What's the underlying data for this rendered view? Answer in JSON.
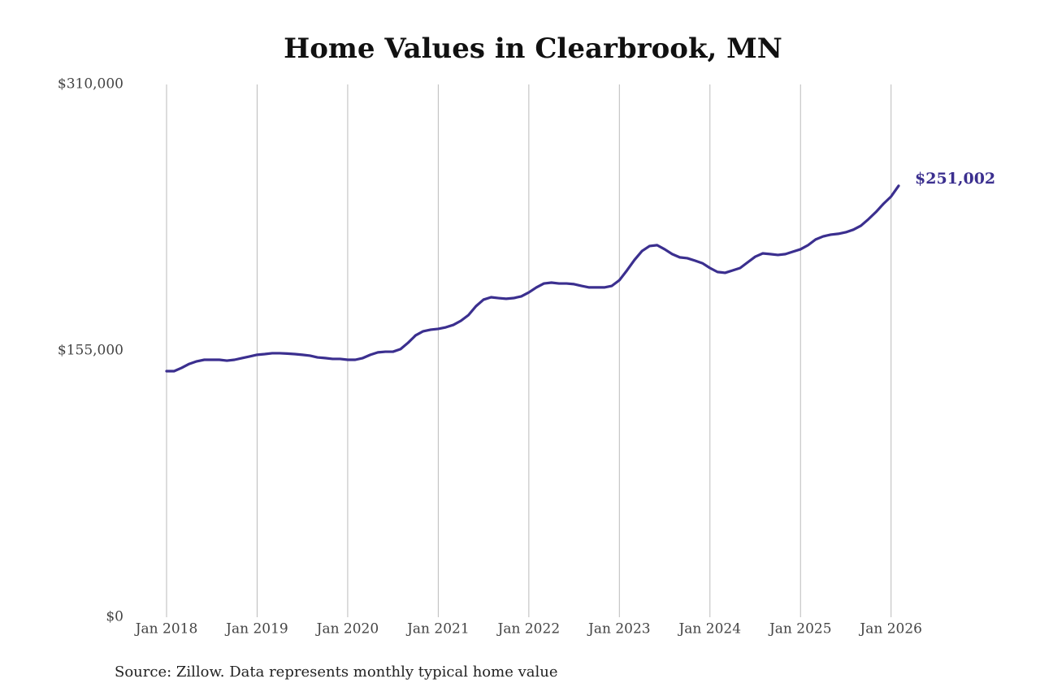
{
  "chart_data": {
    "type": "line",
    "title": "Home Values in Clearbrook, MN",
    "source": "Source: Zillow. Data represents monthly typical home value",
    "x": [
      "2018-01",
      "2018-02",
      "2018-03",
      "2018-04",
      "2018-05",
      "2018-06",
      "2018-07",
      "2018-08",
      "2018-09",
      "2018-10",
      "2018-11",
      "2018-12",
      "2019-01",
      "2019-02",
      "2019-03",
      "2019-04",
      "2019-05",
      "2019-06",
      "2019-07",
      "2019-08",
      "2019-09",
      "2019-10",
      "2019-11",
      "2019-12",
      "2020-01",
      "2020-02",
      "2020-03",
      "2020-04",
      "2020-05",
      "2020-06",
      "2020-07",
      "2020-08",
      "2020-09",
      "2020-10",
      "2020-11",
      "2020-12",
      "2021-01",
      "2021-02",
      "2021-03",
      "2021-04",
      "2021-05",
      "2021-06",
      "2021-07",
      "2021-08",
      "2021-09",
      "2021-10",
      "2021-11",
      "2021-12",
      "2022-01",
      "2022-02",
      "2022-03",
      "2022-04",
      "2022-05",
      "2022-06",
      "2022-07",
      "2022-08",
      "2022-09",
      "2022-10",
      "2022-11",
      "2022-12",
      "2023-01",
      "2023-02",
      "2023-03",
      "2023-04",
      "2023-05",
      "2023-06",
      "2023-07",
      "2023-08",
      "2023-09",
      "2023-10",
      "2023-11",
      "2023-12",
      "2024-01",
      "2024-02",
      "2024-03",
      "2024-04",
      "2024-05",
      "2024-06",
      "2024-07",
      "2024-08",
      "2024-09",
      "2024-10",
      "2024-11",
      "2024-12",
      "2025-01",
      "2025-02",
      "2025-03",
      "2025-04",
      "2025-05",
      "2025-06",
      "2025-07",
      "2025-08",
      "2025-09",
      "2025-10",
      "2025-11",
      "2025-12",
      "2026-01",
      "2026-02"
    ],
    "series": [
      {
        "name": "Typical home value",
        "color": "#3b2f8f",
        "values": [
          143200,
          143200,
          145100,
          147400,
          148900,
          149800,
          149800,
          149800,
          149300,
          149800,
          150800,
          151700,
          152700,
          153100,
          153600,
          153600,
          153400,
          153100,
          152700,
          152200,
          151200,
          150800,
          150300,
          150300,
          149800,
          149800,
          150800,
          152700,
          154100,
          154500,
          154500,
          156000,
          159700,
          164000,
          166400,
          167300,
          167800,
          168700,
          170100,
          172500,
          175800,
          181000,
          184800,
          186200,
          185700,
          185300,
          185700,
          186700,
          189000,
          191900,
          194200,
          194700,
          194200,
          194200,
          193800,
          192800,
          191900,
          191900,
          191900,
          192800,
          196100,
          201800,
          207900,
          213100,
          216000,
          216500,
          214100,
          211300,
          209400,
          208900,
          207500,
          206000,
          203200,
          200900,
          200400,
          201800,
          203200,
          206500,
          209800,
          211700,
          211300,
          210800,
          211300,
          212700,
          214100,
          216500,
          219800,
          221600,
          222600,
          223100,
          224000,
          225500,
          227800,
          231600,
          235800,
          240600,
          244800,
          251002
        ]
      }
    ],
    "end_label": "$251,002",
    "xlim": [
      "2018-01",
      "2026-02"
    ],
    "xticks": [
      {
        "value": "2018-01",
        "label": "Jan 2018"
      },
      {
        "value": "2019-01",
        "label": "Jan 2019"
      },
      {
        "value": "2020-01",
        "label": "Jan 2020"
      },
      {
        "value": "2021-01",
        "label": "Jan 2021"
      },
      {
        "value": "2022-01",
        "label": "Jan 2022"
      },
      {
        "value": "2023-01",
        "label": "Jan 2023"
      },
      {
        "value": "2024-01",
        "label": "Jan 2024"
      },
      {
        "value": "2025-01",
        "label": "Jan 2025"
      },
      {
        "value": "2026-01",
        "label": "Jan 2026"
      }
    ],
    "ylim": [
      0,
      310000
    ],
    "yticks": [
      {
        "value": 0,
        "label": "$0"
      },
      {
        "value": 155000,
        "label": "$155,000"
      },
      {
        "value": 310000,
        "label": "$310,000"
      }
    ],
    "grid": "x"
  }
}
